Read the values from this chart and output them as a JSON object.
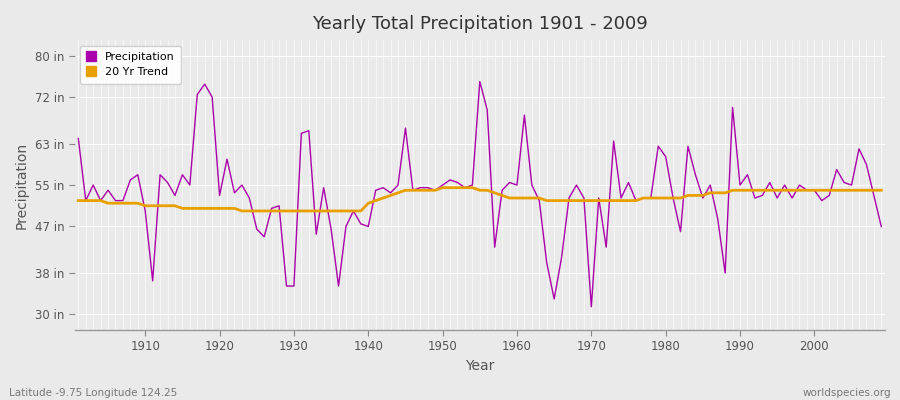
{
  "title": "Yearly Total Precipitation 1901 - 2009",
  "xlabel": "Year",
  "ylabel": "Precipitation",
  "bottom_left_label": "Latitude -9.75 Longitude 124.25",
  "bottom_right_label": "worldspecies.org",
  "precip_color": "#AA00AA",
  "trend_color": "#E8A000",
  "bg_color": "#EAEAEA",
  "grid_color": "#FFFFFF",
  "years": [
    1901,
    1902,
    1903,
    1904,
    1905,
    1906,
    1907,
    1908,
    1909,
    1910,
    1911,
    1912,
    1913,
    1914,
    1915,
    1916,
    1917,
    1918,
    1919,
    1920,
    1921,
    1922,
    1923,
    1924,
    1925,
    1926,
    1927,
    1928,
    1929,
    1930,
    1931,
    1932,
    1933,
    1934,
    1935,
    1936,
    1937,
    1938,
    1939,
    1940,
    1941,
    1942,
    1943,
    1944,
    1945,
    1946,
    1947,
    1948,
    1949,
    1950,
    1951,
    1952,
    1953,
    1954,
    1955,
    1956,
    1957,
    1958,
    1959,
    1960,
    1961,
    1962,
    1963,
    1964,
    1965,
    1966,
    1967,
    1968,
    1969,
    1970,
    1971,
    1972,
    1973,
    1974,
    1975,
    1976,
    1977,
    1978,
    1979,
    1980,
    1981,
    1982,
    1983,
    1984,
    1985,
    1986,
    1987,
    1988,
    1989,
    1990,
    1991,
    1992,
    1993,
    1994,
    1995,
    1996,
    1997,
    1998,
    1999,
    2000,
    2001,
    2002,
    2003,
    2004,
    2005,
    2006,
    2007,
    2008,
    2009
  ],
  "precip_in": [
    64.0,
    52.0,
    55.0,
    52.0,
    54.0,
    52.0,
    52.0,
    56.0,
    57.0,
    50.0,
    36.5,
    57.0,
    55.5,
    53.0,
    57.0,
    55.0,
    72.5,
    74.5,
    72.0,
    53.0,
    60.0,
    53.5,
    55.0,
    52.5,
    46.5,
    45.0,
    50.5,
    51.0,
    35.5,
    35.5,
    65.0,
    65.5,
    45.5,
    54.5,
    46.5,
    35.5,
    47.0,
    50.0,
    47.5,
    47.0,
    54.0,
    54.5,
    53.5,
    55.0,
    66.0,
    54.0,
    54.5,
    54.5,
    54.0,
    55.0,
    56.0,
    55.5,
    54.5,
    55.0,
    75.0,
    69.5,
    43.0,
    54.0,
    55.5,
    55.0,
    68.5,
    55.0,
    52.0,
    40.0,
    33.0,
    41.0,
    52.5,
    55.0,
    52.5,
    31.5,
    52.5,
    43.0,
    63.5,
    52.5,
    55.5,
    52.0,
    52.5,
    52.5,
    62.5,
    60.5,
    52.5,
    46.0,
    62.5,
    57.0,
    52.5,
    55.0,
    48.5,
    38.0,
    70.0,
    55.0,
    57.0,
    52.5,
    53.0,
    55.5,
    52.5,
    55.0,
    52.5,
    55.0,
    54.0,
    54.0,
    52.0,
    53.0,
    58.0,
    55.5,
    55.0,
    62.0,
    59.0,
    53.0,
    47.0
  ],
  "trend_in": [
    52.0,
    52.0,
    52.0,
    52.0,
    51.5,
    51.5,
    51.5,
    51.5,
    51.5,
    51.0,
    51.0,
    51.0,
    51.0,
    51.0,
    50.5,
    50.5,
    50.5,
    50.5,
    50.5,
    50.5,
    50.5,
    50.5,
    50.0,
    50.0,
    50.0,
    50.0,
    50.0,
    50.0,
    50.0,
    50.0,
    50.0,
    50.0,
    50.0,
    50.0,
    50.0,
    50.0,
    50.0,
    50.0,
    50.0,
    51.5,
    52.0,
    52.5,
    53.0,
    53.5,
    54.0,
    54.0,
    54.0,
    54.0,
    54.0,
    54.5,
    54.5,
    54.5,
    54.5,
    54.5,
    54.0,
    54.0,
    53.5,
    53.0,
    52.5,
    52.5,
    52.5,
    52.5,
    52.5,
    52.0,
    52.0,
    52.0,
    52.0,
    52.0,
    52.0,
    52.0,
    52.0,
    52.0,
    52.0,
    52.0,
    52.0,
    52.0,
    52.5,
    52.5,
    52.5,
    52.5,
    52.5,
    52.5,
    53.0,
    53.0,
    53.0,
    53.5,
    53.5,
    53.5,
    54.0,
    54.0,
    54.0,
    54.0,
    54.0,
    54.0,
    54.0,
    54.0,
    54.0,
    54.0,
    54.0,
    54.0,
    54.0,
    54.0,
    54.0,
    54.0,
    54.0,
    54.0,
    54.0,
    54.0,
    54.0
  ],
  "yticks": [
    30,
    38,
    47,
    55,
    63,
    72,
    80
  ],
  "ytick_labels": [
    "30 in",
    "38 in",
    "47 in",
    "55 in",
    "63 in",
    "72 in",
    "80 in"
  ],
  "ylim": [
    27,
    83
  ],
  "xlim": [
    1900.5,
    2009.5
  ],
  "xticks": [
    1910,
    1920,
    1930,
    1940,
    1950,
    1960,
    1970,
    1980,
    1990,
    2000
  ]
}
